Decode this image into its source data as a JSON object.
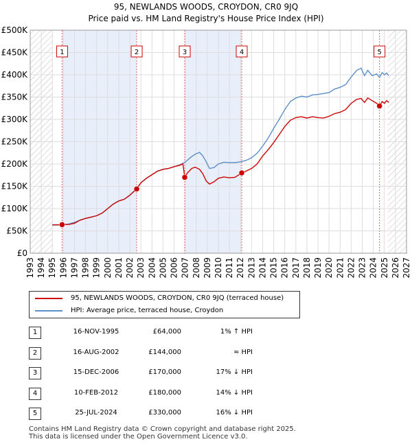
{
  "chart_data": {
    "type": "line",
    "title": "95, NEWLANDS WOODS, CROYDON, CR0 9JQ",
    "subtitle": "Price paid vs. HM Land Registry's House Price Index (HPI)",
    "xlim": [
      1993,
      2027
    ],
    "ylim": [
      0,
      500000
    ],
    "x_ticks": [
      "1993",
      "1994",
      "1995",
      "1996",
      "1997",
      "1998",
      "1999",
      "2000",
      "2001",
      "2002",
      "2003",
      "2004",
      "2005",
      "2006",
      "2007",
      "2008",
      "2009",
      "2010",
      "2011",
      "2012",
      "2013",
      "2014",
      "2015",
      "2016",
      "2017",
      "2018",
      "2019",
      "2020",
      "2021",
      "2022",
      "2023",
      "2024",
      "2025",
      "2026",
      "2027"
    ],
    "y_ticks": [
      {
        "value": 0,
        "label": "£0"
      },
      {
        "value": 50000,
        "label": "£50K"
      },
      {
        "value": 100000,
        "label": "£100K"
      },
      {
        "value": 150000,
        "label": "£150K"
      },
      {
        "value": 200000,
        "label": "£200K"
      },
      {
        "value": 250000,
        "label": "£250K"
      },
      {
        "value": 300000,
        "label": "£300K"
      },
      {
        "value": 350000,
        "label": "£350K"
      },
      {
        "value": 400000,
        "label": "£400K"
      },
      {
        "value": 450000,
        "label": "£450K"
      },
      {
        "value": 500000,
        "label": "£500K"
      }
    ],
    "data_start": 1995.0,
    "hatch_after": 2025.3,
    "series": [
      {
        "name": "95, NEWLANDS WOODS, CROYDON, CR0 9JQ (terraced house)",
        "color": "#cc0000",
        "points": [
          [
            1995.0,
            63500
          ],
          [
            1995.88,
            64000
          ],
          [
            1996.5,
            64500
          ],
          [
            1997.0,
            67000
          ],
          [
            1997.5,
            74000
          ],
          [
            1998.0,
            78000
          ],
          [
            1998.5,
            81000
          ],
          [
            1999.0,
            84000
          ],
          [
            1999.5,
            90000
          ],
          [
            2000.0,
            100000
          ],
          [
            2000.5,
            110000
          ],
          [
            2001.0,
            117000
          ],
          [
            2001.5,
            121000
          ],
          [
            2002.0,
            130000
          ],
          [
            2002.62,
            144000
          ],
          [
            2003.0,
            158000
          ],
          [
            2003.5,
            168000
          ],
          [
            2004.0,
            176000
          ],
          [
            2004.5,
            184000
          ],
          [
            2005.0,
            188000
          ],
          [
            2005.5,
            190000
          ],
          [
            2006.0,
            194000
          ],
          [
            2006.5,
            197000
          ],
          [
            2006.8,
            200000
          ],
          [
            2006.96,
            170000
          ],
          [
            2007.2,
            180000
          ],
          [
            2007.6,
            190000
          ],
          [
            2007.9,
            193000
          ],
          [
            2008.3,
            188000
          ],
          [
            2008.6,
            178000
          ],
          [
            2008.9,
            162000
          ],
          [
            2009.2,
            155000
          ],
          [
            2009.6,
            160000
          ],
          [
            2010.0,
            168000
          ],
          [
            2010.5,
            171000
          ],
          [
            2011.0,
            169000
          ],
          [
            2011.5,
            170000
          ],
          [
            2012.11,
            180000
          ],
          [
            2012.5,
            184000
          ],
          [
            2013.0,
            190000
          ],
          [
            2013.5,
            200000
          ],
          [
            2014.0,
            218000
          ],
          [
            2014.5,
            232000
          ],
          [
            2015.0,
            248000
          ],
          [
            2015.5,
            266000
          ],
          [
            2016.0,
            284000
          ],
          [
            2016.5,
            298000
          ],
          [
            2017.0,
            304000
          ],
          [
            2017.5,
            306000
          ],
          [
            2018.0,
            303000
          ],
          [
            2018.5,
            306000
          ],
          [
            2019.0,
            304000
          ],
          [
            2019.5,
            303000
          ],
          [
            2020.0,
            307000
          ],
          [
            2020.5,
            313000
          ],
          [
            2021.0,
            316000
          ],
          [
            2021.5,
            322000
          ],
          [
            2022.0,
            336000
          ],
          [
            2022.5,
            345000
          ],
          [
            2022.9,
            347000
          ],
          [
            2023.2,
            338000
          ],
          [
            2023.5,
            348000
          ],
          [
            2023.9,
            342000
          ],
          [
            2024.3,
            336000
          ],
          [
            2024.56,
            330000
          ],
          [
            2024.8,
            340000
          ],
          [
            2025.0,
            336000
          ],
          [
            2025.2,
            342000
          ],
          [
            2025.4,
            338000
          ]
        ]
      },
      {
        "name": "HPI: Average price, terraced house, Croydon",
        "color": "#5b8fc7",
        "points": [
          [
            1995.0,
            63000
          ],
          [
            1995.5,
            63200
          ],
          [
            1996.0,
            64000
          ],
          [
            1996.5,
            65500
          ],
          [
            1997.0,
            69000
          ],
          [
            1997.5,
            74000
          ],
          [
            1998.0,
            78000
          ],
          [
            1998.5,
            81000
          ],
          [
            1999.0,
            84000
          ],
          [
            1999.5,
            90000
          ],
          [
            2000.0,
            100000
          ],
          [
            2000.5,
            110000
          ],
          [
            2001.0,
            117000
          ],
          [
            2001.5,
            121000
          ],
          [
            2002.0,
            130000
          ],
          [
            2002.62,
            145000
          ],
          [
            2003.0,
            158000
          ],
          [
            2003.5,
            168000
          ],
          [
            2004.0,
            176000
          ],
          [
            2004.5,
            184000
          ],
          [
            2005.0,
            188000
          ],
          [
            2005.5,
            190000
          ],
          [
            2006.0,
            194000
          ],
          [
            2006.5,
            198000
          ],
          [
            2007.0,
            204000
          ],
          [
            2007.5,
            215000
          ],
          [
            2007.9,
            222000
          ],
          [
            2008.3,
            226000
          ],
          [
            2008.6,
            218000
          ],
          [
            2008.9,
            205000
          ],
          [
            2009.2,
            190000
          ],
          [
            2009.6,
            192000
          ],
          [
            2010.0,
            200000
          ],
          [
            2010.5,
            204000
          ],
          [
            2011.0,
            203000
          ],
          [
            2011.5,
            203000
          ],
          [
            2012.0,
            205000
          ],
          [
            2012.5,
            208000
          ],
          [
            2013.0,
            214000
          ],
          [
            2013.5,
            224000
          ],
          [
            2014.0,
            240000
          ],
          [
            2014.5,
            258000
          ],
          [
            2015.0,
            280000
          ],
          [
            2015.5,
            300000
          ],
          [
            2016.0,
            322000
          ],
          [
            2016.5,
            340000
          ],
          [
            2017.0,
            348000
          ],
          [
            2017.5,
            352000
          ],
          [
            2018.0,
            350000
          ],
          [
            2018.5,
            355000
          ],
          [
            2019.0,
            356000
          ],
          [
            2019.5,
            358000
          ],
          [
            2020.0,
            360000
          ],
          [
            2020.5,
            368000
          ],
          [
            2021.0,
            372000
          ],
          [
            2021.5,
            378000
          ],
          [
            2022.0,
            395000
          ],
          [
            2022.5,
            410000
          ],
          [
            2022.9,
            415000
          ],
          [
            2023.2,
            398000
          ],
          [
            2023.5,
            410000
          ],
          [
            2023.9,
            398000
          ],
          [
            2024.3,
            402000
          ],
          [
            2024.56,
            394000
          ],
          [
            2024.8,
            405000
          ],
          [
            2025.0,
            400000
          ],
          [
            2025.2,
            404000
          ],
          [
            2025.4,
            398000
          ]
        ]
      }
    ],
    "sales": [
      {
        "id": "1",
        "year": 1995.88,
        "price": 64000
      },
      {
        "id": "2",
        "year": 2002.62,
        "price": 144000
      },
      {
        "id": "3",
        "year": 2006.96,
        "price": 170000
      },
      {
        "id": "4",
        "year": 2012.11,
        "price": 180000
      },
      {
        "id": "5",
        "year": 2024.56,
        "price": 330000
      }
    ],
    "shaded_periods": [
      [
        1995.88,
        2002.62
      ],
      [
        2006.96,
        2012.11
      ]
    ]
  },
  "legend": {
    "property_label": "95, NEWLANDS WOODS, CROYDON, CR0 9JQ (terraced house)",
    "hpi_label": "HPI: Average price, terraced house, Croydon"
  },
  "sales_table": [
    {
      "num": "1",
      "date": "16-NOV-1995",
      "price": "£64,000",
      "hpi": "1% ↑ HPI"
    },
    {
      "num": "2",
      "date": "16-AUG-2002",
      "price": "£144,000",
      "hpi": "≈ HPI"
    },
    {
      "num": "3",
      "date": "15-DEC-2006",
      "price": "£170,000",
      "hpi": "17% ↓ HPI"
    },
    {
      "num": "4",
      "date": "10-FEB-2012",
      "price": "£180,000",
      "hpi": "14% ↓ HPI"
    },
    {
      "num": "5",
      "date": "25-JUL-2024",
      "price": "£330,000",
      "hpi": "16% ↓ HPI"
    }
  ],
  "footer": {
    "line1": "Contains HM Land Registry data © Crown copyright and database right 2025.",
    "line2": "This data is licensed under the Open Government Licence v3.0."
  }
}
